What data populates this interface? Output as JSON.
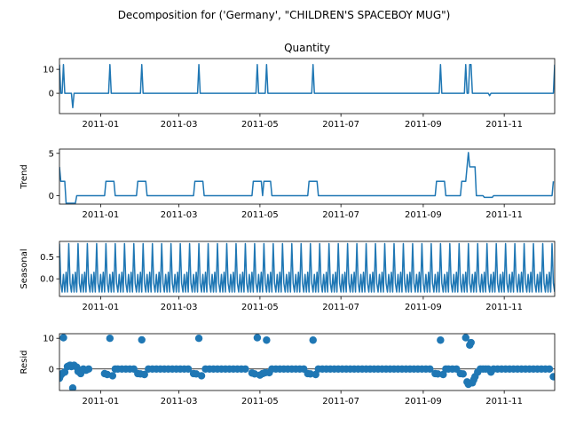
{
  "figure": {
    "suptitle": "Decomposition for ('Germany', \"CHILDREN'S SPACEBOY MUG\")",
    "line_color": "#1f77b4",
    "axis_color": "#000000"
  },
  "chart_data": [
    {
      "type": "line",
      "title": "Quantity",
      "ylabel": "",
      "x_range": [
        "2010-12-01",
        "2011-12-09"
      ],
      "ylim": [
        -8.5,
        14.5
      ],
      "yticks": [
        0,
        10
      ],
      "ytick_labels": [
        "0",
        "10"
      ],
      "xticks": [
        "2011-01-01",
        "2011-03-01",
        "2011-05-01",
        "2011-07-01",
        "2011-09-01",
        "2011-11-01"
      ],
      "xtick_labels": [
        "2011-01",
        "2011-03",
        "2011-05",
        "2011-07",
        "2011-09",
        "2011-11"
      ],
      "points": [
        {
          "x": "2010-12-01",
          "y": 12
        },
        {
          "x": "2010-12-02",
          "y": 0
        },
        {
          "x": "2010-12-03",
          "y": 0
        },
        {
          "x": "2010-12-04",
          "y": 12
        },
        {
          "x": "2010-12-05",
          "y": 0
        },
        {
          "x": "2010-12-10",
          "y": 0
        },
        {
          "x": "2010-12-11",
          "y": -6
        },
        {
          "x": "2010-12-12",
          "y": 0
        },
        {
          "x": "2011-01-07",
          "y": 0
        },
        {
          "x": "2011-01-08",
          "y": 12
        },
        {
          "x": "2011-01-09",
          "y": 0
        },
        {
          "x": "2011-01-31",
          "y": 0
        },
        {
          "x": "2011-02-01",
          "y": 12
        },
        {
          "x": "2011-02-02",
          "y": 0
        },
        {
          "x": "2011-03-15",
          "y": 0
        },
        {
          "x": "2011-03-16",
          "y": 12
        },
        {
          "x": "2011-03-17",
          "y": 0
        },
        {
          "x": "2011-04-28",
          "y": 0
        },
        {
          "x": "2011-04-29",
          "y": 12
        },
        {
          "x": "2011-04-30",
          "y": 0
        },
        {
          "x": "2011-05-05",
          "y": 0
        },
        {
          "x": "2011-05-06",
          "y": 12
        },
        {
          "x": "2011-05-07",
          "y": 0
        },
        {
          "x": "2011-06-09",
          "y": 0
        },
        {
          "x": "2011-06-10",
          "y": 12
        },
        {
          "x": "2011-06-11",
          "y": 0
        },
        {
          "x": "2011-09-13",
          "y": 0
        },
        {
          "x": "2011-09-14",
          "y": 12
        },
        {
          "x": "2011-09-15",
          "y": 0
        },
        {
          "x": "2011-10-02",
          "y": 0
        },
        {
          "x": "2011-10-03",
          "y": 12
        },
        {
          "x": "2011-10-04",
          "y": 0
        },
        {
          "x": "2011-10-05",
          "y": 0
        },
        {
          "x": "2011-10-06",
          "y": 12
        },
        {
          "x": "2011-10-07",
          "y": 12
        },
        {
          "x": "2011-10-08",
          "y": 0
        },
        {
          "x": "2011-10-20",
          "y": 0
        },
        {
          "x": "2011-10-21",
          "y": -1
        },
        {
          "x": "2011-10-22",
          "y": 0
        },
        {
          "x": "2011-12-08",
          "y": 0
        },
        {
          "x": "2011-12-09",
          "y": 12
        }
      ]
    },
    {
      "type": "line",
      "title": "",
      "ylabel": "Trend",
      "x_range": [
        "2010-12-01",
        "2011-12-09"
      ],
      "ylim": [
        -1.0,
        5.5
      ],
      "yticks": [
        0,
        5
      ],
      "ytick_labels": [
        "0",
        "5"
      ],
      "xticks": [
        "2011-01-01",
        "2011-03-01",
        "2011-05-01",
        "2011-07-01",
        "2011-09-01",
        "2011-11-01"
      ],
      "xtick_labels": [
        "2011-01",
        "2011-03",
        "2011-05",
        "2011-07",
        "2011-09",
        "2011-11"
      ],
      "points": [
        {
          "x": "2010-12-01",
          "y": 3.4
        },
        {
          "x": "2010-12-02",
          "y": 1.7
        },
        {
          "x": "2010-12-05",
          "y": 1.7
        },
        {
          "x": "2010-12-06",
          "y": -0.9
        },
        {
          "x": "2010-12-13",
          "y": -0.9
        },
        {
          "x": "2010-12-14",
          "y": 0
        },
        {
          "x": "2011-01-04",
          "y": 0
        },
        {
          "x": "2011-01-05",
          "y": 1.7
        },
        {
          "x": "2011-01-11",
          "y": 1.7
        },
        {
          "x": "2011-01-12",
          "y": 0
        },
        {
          "x": "2011-01-28",
          "y": 0
        },
        {
          "x": "2011-01-29",
          "y": 1.7
        },
        {
          "x": "2011-02-04",
          "y": 1.7
        },
        {
          "x": "2011-02-05",
          "y": 0
        },
        {
          "x": "2011-03-12",
          "y": 0
        },
        {
          "x": "2011-03-13",
          "y": 1.7
        },
        {
          "x": "2011-03-19",
          "y": 1.7
        },
        {
          "x": "2011-03-20",
          "y": 0
        },
        {
          "x": "2011-04-25",
          "y": 0
        },
        {
          "x": "2011-04-26",
          "y": 1.7
        },
        {
          "x": "2011-05-02",
          "y": 1.7
        },
        {
          "x": "2011-05-03",
          "y": 0
        },
        {
          "x": "2011-05-04",
          "y": 1.7
        },
        {
          "x": "2011-05-09",
          "y": 1.7
        },
        {
          "x": "2011-05-10",
          "y": 0
        },
        {
          "x": "2011-06-06",
          "y": 0
        },
        {
          "x": "2011-06-07",
          "y": 1.7
        },
        {
          "x": "2011-06-13",
          "y": 1.7
        },
        {
          "x": "2011-06-14",
          "y": 0
        },
        {
          "x": "2011-09-10",
          "y": 0
        },
        {
          "x": "2011-09-11",
          "y": 1.7
        },
        {
          "x": "2011-09-17",
          "y": 1.7
        },
        {
          "x": "2011-09-18",
          "y": 0
        },
        {
          "x": "2011-09-29",
          "y": 0
        },
        {
          "x": "2011-09-30",
          "y": 1.7
        },
        {
          "x": "2011-10-03",
          "y": 1.7
        },
        {
          "x": "2011-10-05",
          "y": 5.1
        },
        {
          "x": "2011-10-06",
          "y": 3.4
        },
        {
          "x": "2011-10-10",
          "y": 3.4
        },
        {
          "x": "2011-10-11",
          "y": 0
        },
        {
          "x": "2011-10-16",
          "y": 0
        },
        {
          "x": "2011-10-17",
          "y": -0.2
        },
        {
          "x": "2011-10-23",
          "y": -0.2
        },
        {
          "x": "2011-10-24",
          "y": 0
        },
        {
          "x": "2011-12-07",
          "y": 0
        },
        {
          "x": "2011-12-08",
          "y": 1.7
        }
      ]
    },
    {
      "type": "line",
      "title": "",
      "ylabel": "Seasonal",
      "x_range": [
        "2010-12-01",
        "2011-12-09"
      ],
      "ylim": [
        -0.4,
        0.85
      ],
      "yticks": [
        0.0,
        0.5
      ],
      "ytick_labels": [
        "0.0",
        "0.5"
      ],
      "xticks": [
        "2011-01-01",
        "2011-03-01",
        "2011-05-01",
        "2011-07-01",
        "2011-09-01",
        "2011-11-01"
      ],
      "xtick_labels": [
        "2011-01",
        "2011-03",
        "2011-05",
        "2011-07",
        "2011-09",
        "2011-11"
      ],
      "period": 7,
      "pattern": [
        0.8,
        -0.1,
        -0.3,
        0.1,
        -0.3,
        0.15,
        -0.3
      ],
      "start": "2010-12-01",
      "end": "2011-12-09"
    },
    {
      "type": "scatter",
      "title": "",
      "ylabel": "Resid",
      "x_range": [
        "2010-12-01",
        "2011-12-09"
      ],
      "ylim": [
        -7.0,
        11.5
      ],
      "yticks": [
        0,
        10
      ],
      "ytick_labels": [
        "0",
        "10"
      ],
      "xticks": [
        "2011-01-01",
        "2011-03-01",
        "2011-05-01",
        "2011-07-01",
        "2011-09-01",
        "2011-11-01"
      ],
      "xtick_labels": [
        "2011-01",
        "2011-03",
        "2011-05",
        "2011-07",
        "2011-09",
        "2011-11"
      ],
      "baseline": 0,
      "points": [
        {
          "x": "2010-12-01",
          "y": -3
        },
        {
          "x": "2010-12-02",
          "y": -2
        },
        {
          "x": "2010-12-03",
          "y": -1.5
        },
        {
          "x": "2010-12-04",
          "y": 10.2
        },
        {
          "x": "2010-12-05",
          "y": -1
        },
        {
          "x": "2010-12-07",
          "y": 0.8
        },
        {
          "x": "2010-12-08",
          "y": 1
        },
        {
          "x": "2010-12-09",
          "y": 1.2
        },
        {
          "x": "2010-12-10",
          "y": 0.8
        },
        {
          "x": "2010-12-11",
          "y": -6.2
        },
        {
          "x": "2010-12-12",
          "y": 1.2
        },
        {
          "x": "2010-12-14",
          "y": 0.6
        },
        {
          "x": "2010-12-15",
          "y": -0.8
        },
        {
          "x": "2010-12-17",
          "y": -1.5
        },
        {
          "x": "2010-12-19",
          "y": 0
        },
        {
          "x": "2010-12-21",
          "y": -0.4
        },
        {
          "x": "2010-12-23",
          "y": 0
        },
        {
          "x": "2011-01-04",
          "y": -1.5
        },
        {
          "x": "2011-01-06",
          "y": -1.8
        },
        {
          "x": "2011-01-08",
          "y": 10
        },
        {
          "x": "2011-01-10",
          "y": -2.2
        },
        {
          "x": "2011-01-12",
          "y": 0
        },
        {
          "x": "2011-01-14",
          "y": 0
        },
        {
          "x": "2011-01-17",
          "y": 0
        },
        {
          "x": "2011-01-20",
          "y": 0
        },
        {
          "x": "2011-01-23",
          "y": 0
        },
        {
          "x": "2011-01-26",
          "y": 0
        },
        {
          "x": "2011-01-29",
          "y": -1.5
        },
        {
          "x": "2011-01-31",
          "y": -1.6
        },
        {
          "x": "2011-02-01",
          "y": 9.5
        },
        {
          "x": "2011-02-03",
          "y": -1.8
        },
        {
          "x": "2011-02-06",
          "y": 0
        },
        {
          "x": "2011-02-09",
          "y": 0
        },
        {
          "x": "2011-02-12",
          "y": 0
        },
        {
          "x": "2011-02-15",
          "y": 0
        },
        {
          "x": "2011-02-18",
          "y": 0
        },
        {
          "x": "2011-02-21",
          "y": 0
        },
        {
          "x": "2011-02-24",
          "y": 0
        },
        {
          "x": "2011-02-27",
          "y": 0
        },
        {
          "x": "2011-03-02",
          "y": 0
        },
        {
          "x": "2011-03-05",
          "y": 0
        },
        {
          "x": "2011-03-08",
          "y": 0
        },
        {
          "x": "2011-03-12",
          "y": -1.5
        },
        {
          "x": "2011-03-14",
          "y": -1.6
        },
        {
          "x": "2011-03-16",
          "y": 10
        },
        {
          "x": "2011-03-18",
          "y": -2.2
        },
        {
          "x": "2011-03-21",
          "y": 0
        },
        {
          "x": "2011-03-24",
          "y": 0
        },
        {
          "x": "2011-03-27",
          "y": 0
        },
        {
          "x": "2011-03-30",
          "y": 0
        },
        {
          "x": "2011-04-02",
          "y": 0
        },
        {
          "x": "2011-04-05",
          "y": 0
        },
        {
          "x": "2011-04-08",
          "y": 0
        },
        {
          "x": "2011-04-11",
          "y": 0
        },
        {
          "x": "2011-04-14",
          "y": 0
        },
        {
          "x": "2011-04-17",
          "y": 0
        },
        {
          "x": "2011-04-20",
          "y": 0
        },
        {
          "x": "2011-04-25",
          "y": -1.3
        },
        {
          "x": "2011-04-27",
          "y": -1.6
        },
        {
          "x": "2011-04-29",
          "y": 10.2
        },
        {
          "x": "2011-05-01",
          "y": -2
        },
        {
          "x": "2011-05-03",
          "y": -1.5
        },
        {
          "x": "2011-05-05",
          "y": -1.2
        },
        {
          "x": "2011-05-06",
          "y": 9.4
        },
        {
          "x": "2011-05-08",
          "y": -1.2
        },
        {
          "x": "2011-05-10",
          "y": 0
        },
        {
          "x": "2011-05-13",
          "y": 0
        },
        {
          "x": "2011-05-16",
          "y": 0
        },
        {
          "x": "2011-05-19",
          "y": 0
        },
        {
          "x": "2011-05-22",
          "y": 0
        },
        {
          "x": "2011-05-25",
          "y": 0
        },
        {
          "x": "2011-05-28",
          "y": 0
        },
        {
          "x": "2011-05-31",
          "y": 0
        },
        {
          "x": "2011-06-03",
          "y": 0
        },
        {
          "x": "2011-06-06",
          "y": -1.5
        },
        {
          "x": "2011-06-08",
          "y": -1.6
        },
        {
          "x": "2011-06-10",
          "y": 9.4
        },
        {
          "x": "2011-06-12",
          "y": -1.8
        },
        {
          "x": "2011-06-14",
          "y": 0
        },
        {
          "x": "2011-06-17",
          "y": 0
        },
        {
          "x": "2011-06-20",
          "y": 0
        },
        {
          "x": "2011-06-23",
          "y": 0
        },
        {
          "x": "2011-06-26",
          "y": 0
        },
        {
          "x": "2011-06-29",
          "y": 0
        },
        {
          "x": "2011-07-02",
          "y": 0
        },
        {
          "x": "2011-07-05",
          "y": 0
        },
        {
          "x": "2011-07-08",
          "y": 0
        },
        {
          "x": "2011-07-11",
          "y": 0
        },
        {
          "x": "2011-07-14",
          "y": 0
        },
        {
          "x": "2011-07-17",
          "y": 0
        },
        {
          "x": "2011-07-20",
          "y": 0
        },
        {
          "x": "2011-07-23",
          "y": 0
        },
        {
          "x": "2011-07-26",
          "y": 0
        },
        {
          "x": "2011-07-29",
          "y": 0
        },
        {
          "x": "2011-08-01",
          "y": 0
        },
        {
          "x": "2011-08-04",
          "y": 0
        },
        {
          "x": "2011-08-07",
          "y": 0
        },
        {
          "x": "2011-08-10",
          "y": 0
        },
        {
          "x": "2011-08-13",
          "y": 0
        },
        {
          "x": "2011-08-16",
          "y": 0
        },
        {
          "x": "2011-08-19",
          "y": 0
        },
        {
          "x": "2011-08-22",
          "y": 0
        },
        {
          "x": "2011-08-25",
          "y": 0
        },
        {
          "x": "2011-08-28",
          "y": 0
        },
        {
          "x": "2011-08-31",
          "y": 0
        },
        {
          "x": "2011-09-03",
          "y": 0
        },
        {
          "x": "2011-09-06",
          "y": 0
        },
        {
          "x": "2011-09-10",
          "y": -1.5
        },
        {
          "x": "2011-09-12",
          "y": -1.6
        },
        {
          "x": "2011-09-14",
          "y": 9.4
        },
        {
          "x": "2011-09-16",
          "y": -1.8
        },
        {
          "x": "2011-09-18",
          "y": 0
        },
        {
          "x": "2011-09-20",
          "y": 0
        },
        {
          "x": "2011-09-23",
          "y": 0
        },
        {
          "x": "2011-09-26",
          "y": 0
        },
        {
          "x": "2011-09-29",
          "y": -1.5
        },
        {
          "x": "2011-10-01",
          "y": -1.6
        },
        {
          "x": "2011-10-03",
          "y": 10.2
        },
        {
          "x": "2011-10-04",
          "y": -4.2
        },
        {
          "x": "2011-10-05",
          "y": -5
        },
        {
          "x": "2011-10-06",
          "y": 7.8
        },
        {
          "x": "2011-10-07",
          "y": 8.6
        },
        {
          "x": "2011-10-08",
          "y": -4.5
        },
        {
          "x": "2011-10-09",
          "y": -3.5
        },
        {
          "x": "2011-10-10",
          "y": -2.5
        },
        {
          "x": "2011-10-12",
          "y": -1
        },
        {
          "x": "2011-10-14",
          "y": 0
        },
        {
          "x": "2011-10-16",
          "y": 0
        },
        {
          "x": "2011-10-18",
          "y": 0
        },
        {
          "x": "2011-10-20",
          "y": 0
        },
        {
          "x": "2011-10-22",
          "y": -1
        },
        {
          "x": "2011-10-24",
          "y": 0
        },
        {
          "x": "2011-10-27",
          "y": 0
        },
        {
          "x": "2011-10-30",
          "y": 0
        },
        {
          "x": "2011-11-02",
          "y": 0
        },
        {
          "x": "2011-11-05",
          "y": 0
        },
        {
          "x": "2011-11-08",
          "y": 0
        },
        {
          "x": "2011-11-11",
          "y": 0
        },
        {
          "x": "2011-11-14",
          "y": 0
        },
        {
          "x": "2011-11-17",
          "y": 0
        },
        {
          "x": "2011-11-20",
          "y": 0
        },
        {
          "x": "2011-11-23",
          "y": 0
        },
        {
          "x": "2011-11-26",
          "y": 0
        },
        {
          "x": "2011-11-29",
          "y": 0
        },
        {
          "x": "2011-12-02",
          "y": 0
        },
        {
          "x": "2011-12-05",
          "y": 0
        },
        {
          "x": "2011-12-08",
          "y": -2.5
        }
      ]
    }
  ]
}
